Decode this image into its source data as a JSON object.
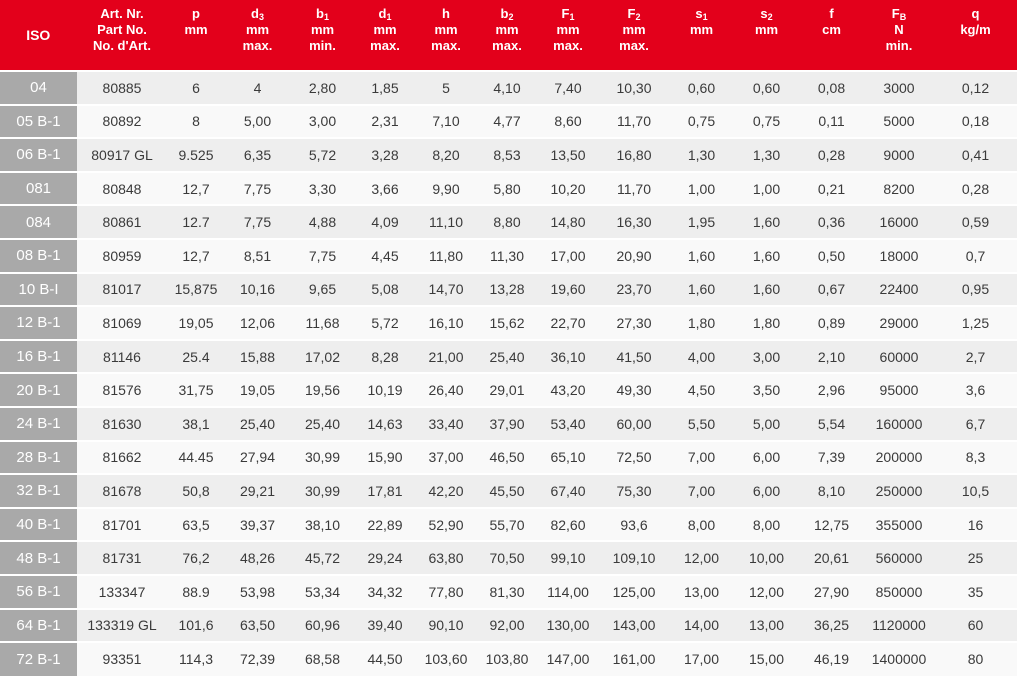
{
  "table": {
    "headers": [
      {
        "key": "iso",
        "lines": [
          [
            "ISO"
          ]
        ]
      },
      {
        "key": "art",
        "lines": [
          [
            "Art. Nr."
          ],
          [
            "Part No."
          ],
          [
            "No. d'Art."
          ]
        ]
      },
      {
        "key": "p",
        "lines": [
          [
            "p"
          ],
          [
            "mm"
          ]
        ]
      },
      {
        "key": "d3",
        "lines": [
          [
            "d",
            "3"
          ],
          [
            "mm"
          ],
          [
            "max."
          ]
        ]
      },
      {
        "key": "b1",
        "lines": [
          [
            "b",
            "1"
          ],
          [
            "mm"
          ],
          [
            "min."
          ]
        ]
      },
      {
        "key": "d1",
        "lines": [
          [
            "d",
            "1"
          ],
          [
            "mm"
          ],
          [
            "max."
          ]
        ]
      },
      {
        "key": "h",
        "lines": [
          [
            "h"
          ],
          [
            "mm"
          ],
          [
            "max."
          ]
        ]
      },
      {
        "key": "b2",
        "lines": [
          [
            "b",
            "2"
          ],
          [
            "mm"
          ],
          [
            "max."
          ]
        ]
      },
      {
        "key": "F1",
        "lines": [
          [
            "F",
            "1"
          ],
          [
            "mm"
          ],
          [
            "max."
          ]
        ]
      },
      {
        "key": "F2",
        "lines": [
          [
            "F",
            "2"
          ],
          [
            "mm"
          ],
          [
            "max."
          ]
        ]
      },
      {
        "key": "s1",
        "lines": [
          [
            "s",
            "1"
          ],
          [
            "mm"
          ]
        ]
      },
      {
        "key": "s2",
        "lines": [
          [
            "s",
            "2"
          ],
          [
            "mm"
          ]
        ]
      },
      {
        "key": "f",
        "lines": [
          [
            "f"
          ],
          [
            "cm"
          ]
        ]
      },
      {
        "key": "FB",
        "lines": [
          [
            "F",
            "B"
          ],
          [
            "N"
          ],
          [
            "min."
          ]
        ]
      },
      {
        "key": "q",
        "lines": [
          [
            "q"
          ],
          [
            "kg/m"
          ]
        ]
      }
    ],
    "rows": [
      [
        "04",
        "80885",
        "6",
        "4",
        "2,80",
        "1,85",
        "5",
        "4,10",
        "7,40",
        "10,30",
        "0,60",
        "0,60",
        "0,08",
        "3000",
        "0,12"
      ],
      [
        "05 B-1",
        "80892",
        "8",
        "5,00",
        "3,00",
        "2,31",
        "7,10",
        "4,77",
        "8,60",
        "11,70",
        "0,75",
        "0,75",
        "0,11",
        "5000",
        "0,18"
      ],
      [
        "06 B-1",
        "80917 GL",
        "9.525",
        "6,35",
        "5,72",
        "3,28",
        "8,20",
        "8,53",
        "13,50",
        "16,80",
        "1,30",
        "1,30",
        "0,28",
        "9000",
        "0,41"
      ],
      [
        "081",
        "80848",
        "12,7",
        "7,75",
        "3,30",
        "3,66",
        "9,90",
        "5,80",
        "10,20",
        "11,70",
        "1,00",
        "1,00",
        "0,21",
        "8200",
        "0,28"
      ],
      [
        "084",
        "80861",
        "12.7",
        "7,75",
        "4,88",
        "4,09",
        "11,10",
        "8,80",
        "14,80",
        "16,30",
        "1,95",
        "1,60",
        "0,36",
        "16000",
        "0,59"
      ],
      [
        "08 B-1",
        "80959",
        "12,7",
        "8,51",
        "7,75",
        "4,45",
        "11,80",
        "11,30",
        "17,00",
        "20,90",
        "1,60",
        "1,60",
        "0,50",
        "18000",
        "0,7"
      ],
      [
        "10 B-I",
        "81017",
        "15,875",
        "10,16",
        "9,65",
        "5,08",
        "14,70",
        "13,28",
        "19,60",
        "23,70",
        "1,60",
        "1,60",
        "0,67",
        "22400",
        "0,95"
      ],
      [
        "12 B-1",
        "81069",
        "19,05",
        "12,06",
        "11,68",
        "5,72",
        "16,10",
        "15,62",
        "22,70",
        "27,30",
        "1,80",
        "1,80",
        "0,89",
        "29000",
        "1,25"
      ],
      [
        "16 B-1",
        "81146",
        "25.4",
        "15,88",
        "17,02",
        "8,28",
        "21,00",
        "25,40",
        "36,10",
        "41,50",
        "4,00",
        "3,00",
        "2,10",
        "60000",
        "2,7"
      ],
      [
        "20 B-1",
        "81576",
        "31,75",
        "19,05",
        "19,56",
        "10,19",
        "26,40",
        "29,01",
        "43,20",
        "49,30",
        "4,50",
        "3,50",
        "2,96",
        "95000",
        "3,6"
      ],
      [
        "24 B-1",
        "81630",
        "38,1",
        "25,40",
        "25,40",
        "14,63",
        "33,40",
        "37,90",
        "53,40",
        "60,00",
        "5,50",
        "5,00",
        "5,54",
        "160000",
        "6,7"
      ],
      [
        "28 B-1",
        "81662",
        "44.45",
        "27,94",
        "30,99",
        "15,90",
        "37,00",
        "46,50",
        "65,10",
        "72,50",
        "7,00",
        "6,00",
        "7,39",
        "200000",
        "8,3"
      ],
      [
        "32 B-1",
        "81678",
        "50,8",
        "29,21",
        "30,99",
        "17,81",
        "42,20",
        "45,50",
        "67,40",
        "75,30",
        "7,00",
        "6,00",
        "8,10",
        "250000",
        "10,5"
      ],
      [
        "40 B-1",
        "81701",
        "63,5",
        "39,37",
        "38,10",
        "22,89",
        "52,90",
        "55,70",
        "82,60",
        "93,6",
        "8,00",
        "8,00",
        "12,75",
        "355000",
        "16"
      ],
      [
        "48 B-1",
        "81731",
        "76,2",
        "48,26",
        "45,72",
        "29,24",
        "63,80",
        "70,50",
        "99,10",
        "109,10",
        "12,00",
        "10,00",
        "20,61",
        "560000",
        "25"
      ],
      [
        "56 B-1",
        "133347",
        "88.9",
        "53,98",
        "53,34",
        "34,32",
        "77,80",
        "81,30",
        "114,00",
        "125,00",
        "13,00",
        "12,00",
        "27,90",
        "850000",
        "35"
      ],
      [
        "64 B-1",
        "133319 GL",
        "101,6",
        "63,50",
        "60,96",
        "39,40",
        "90,10",
        "92,00",
        "130,00",
        "143,00",
        "14,00",
        "13,00",
        "36,25",
        "1120000",
        "60"
      ],
      [
        "72 B-1",
        "93351",
        "114,3",
        "72,39",
        "68,58",
        "44,50",
        "103,60",
        "103,80",
        "147,00",
        "161,00",
        "17,00",
        "15,00",
        "46,19",
        "1400000",
        "80"
      ]
    ]
  },
  "colors": {
    "header_bg": "#e3001b",
    "iso_bg": "#a9a9a9",
    "row_odd": "#eeeeee",
    "row_even": "#f9f9f9",
    "text": "#3a3a3a"
  }
}
